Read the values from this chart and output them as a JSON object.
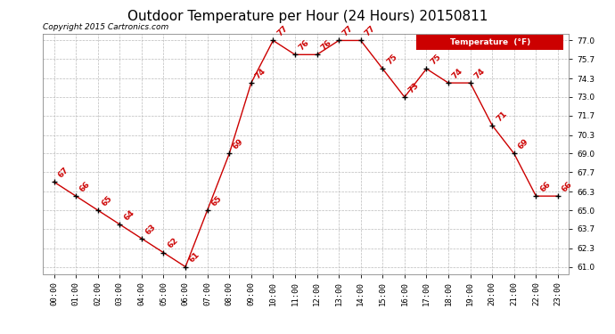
{
  "title": "Outdoor Temperature per Hour (24 Hours) 20150811",
  "copyright_text": "Copyright 2015 Cartronics.com",
  "legend_label": "Temperature  (°F)",
  "hours": [
    0,
    1,
    2,
    3,
    4,
    5,
    6,
    7,
    8,
    9,
    10,
    11,
    12,
    13,
    14,
    15,
    16,
    17,
    18,
    19,
    20,
    21,
    22,
    23
  ],
  "temps": [
    67,
    66,
    65,
    64,
    63,
    62,
    61,
    65,
    69,
    74,
    77,
    76,
    76,
    77,
    77,
    75,
    73,
    75,
    74,
    74,
    71,
    69,
    66,
    66
  ],
  "x_labels": [
    "00:00",
    "01:00",
    "02:00",
    "03:00",
    "04:00",
    "05:00",
    "06:00",
    "07:00",
    "08:00",
    "09:00",
    "10:00",
    "11:00",
    "12:00",
    "13:00",
    "14:00",
    "15:00",
    "16:00",
    "17:00",
    "18:00",
    "19:00",
    "20:00",
    "21:00",
    "22:00",
    "23:00"
  ],
  "y_ticks": [
    61.0,
    62.3,
    63.7,
    65.0,
    66.3,
    67.7,
    69.0,
    70.3,
    71.7,
    73.0,
    74.3,
    75.7,
    77.0
  ],
  "ylim": [
    60.5,
    77.5
  ],
  "xlim": [
    -0.5,
    23.5
  ],
  "line_color": "#cc0000",
  "marker_color": "#000000",
  "label_color": "#cc0000",
  "background_color": "#ffffff",
  "grid_color": "#bbbbbb",
  "legend_bg": "#cc0000",
  "legend_text_color": "#ffffff",
  "title_fontsize": 11,
  "label_fontsize": 6.5,
  "copyright_fontsize": 6.5,
  "tick_fontsize": 6.5
}
